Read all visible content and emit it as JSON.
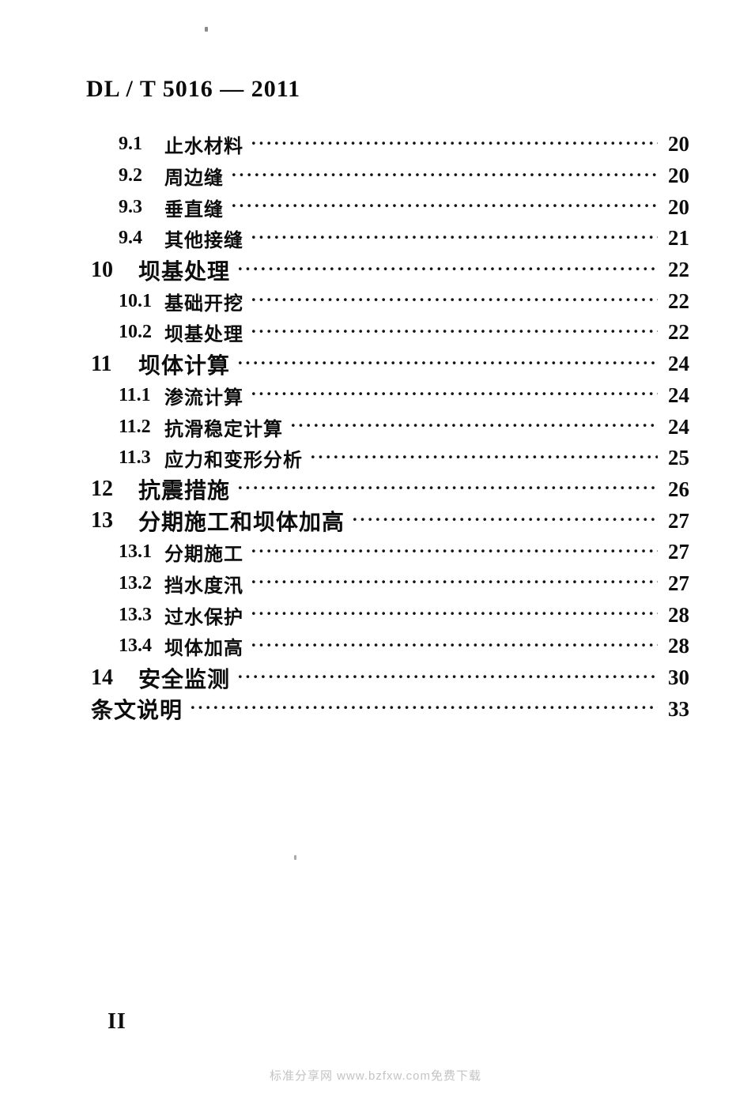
{
  "page": {
    "header_code": "DL / T 5016 — 2011",
    "page_number": "II",
    "footer_watermark": "标准分享网 www.bzfxw.com免费下载",
    "leader_char": "·"
  },
  "toc": {
    "entries": [
      {
        "number": "9.1",
        "title": "止水材料",
        "page": "20",
        "level": "sub"
      },
      {
        "number": "9.2",
        "title": "周边缝",
        "page": "20",
        "level": "sub"
      },
      {
        "number": "9.3",
        "title": "垂直缝",
        "page": "20",
        "level": "sub"
      },
      {
        "number": "9.4",
        "title": "其他接缝",
        "page": "21",
        "level": "sub"
      },
      {
        "number": "10",
        "title": "坝基处理",
        "page": "22",
        "level": "chapter"
      },
      {
        "number": "10.1",
        "title": "基础开挖",
        "page": "22",
        "level": "sub"
      },
      {
        "number": "10.2",
        "title": "坝基处理",
        "page": "22",
        "level": "sub"
      },
      {
        "number": "11",
        "title": "坝体计算",
        "page": "24",
        "level": "chapter"
      },
      {
        "number": "11.1",
        "title": "渗流计算",
        "page": "24",
        "level": "sub"
      },
      {
        "number": "11.2",
        "title": "抗滑稳定计算",
        "page": "24",
        "level": "sub"
      },
      {
        "number": "11.3",
        "title": "应力和变形分析",
        "page": "25",
        "level": "sub"
      },
      {
        "number": "12",
        "title": "抗震措施",
        "page": "26",
        "level": "chapter"
      },
      {
        "number": "13",
        "title": "分期施工和坝体加高",
        "page": "27",
        "level": "chapter"
      },
      {
        "number": "13.1",
        "title": "分期施工",
        "page": "27",
        "level": "sub"
      },
      {
        "number": "13.2",
        "title": "挡水度汛",
        "page": "27",
        "level": "sub"
      },
      {
        "number": "13.3",
        "title": "过水保护",
        "page": "28",
        "level": "sub"
      },
      {
        "number": "13.4",
        "title": "坝体加高",
        "page": "28",
        "level": "sub"
      },
      {
        "number": "14",
        "title": "安全监测",
        "page": "30",
        "level": "chapter"
      },
      {
        "number": "",
        "title": "条文说明",
        "page": "33",
        "level": "chapter"
      }
    ]
  }
}
